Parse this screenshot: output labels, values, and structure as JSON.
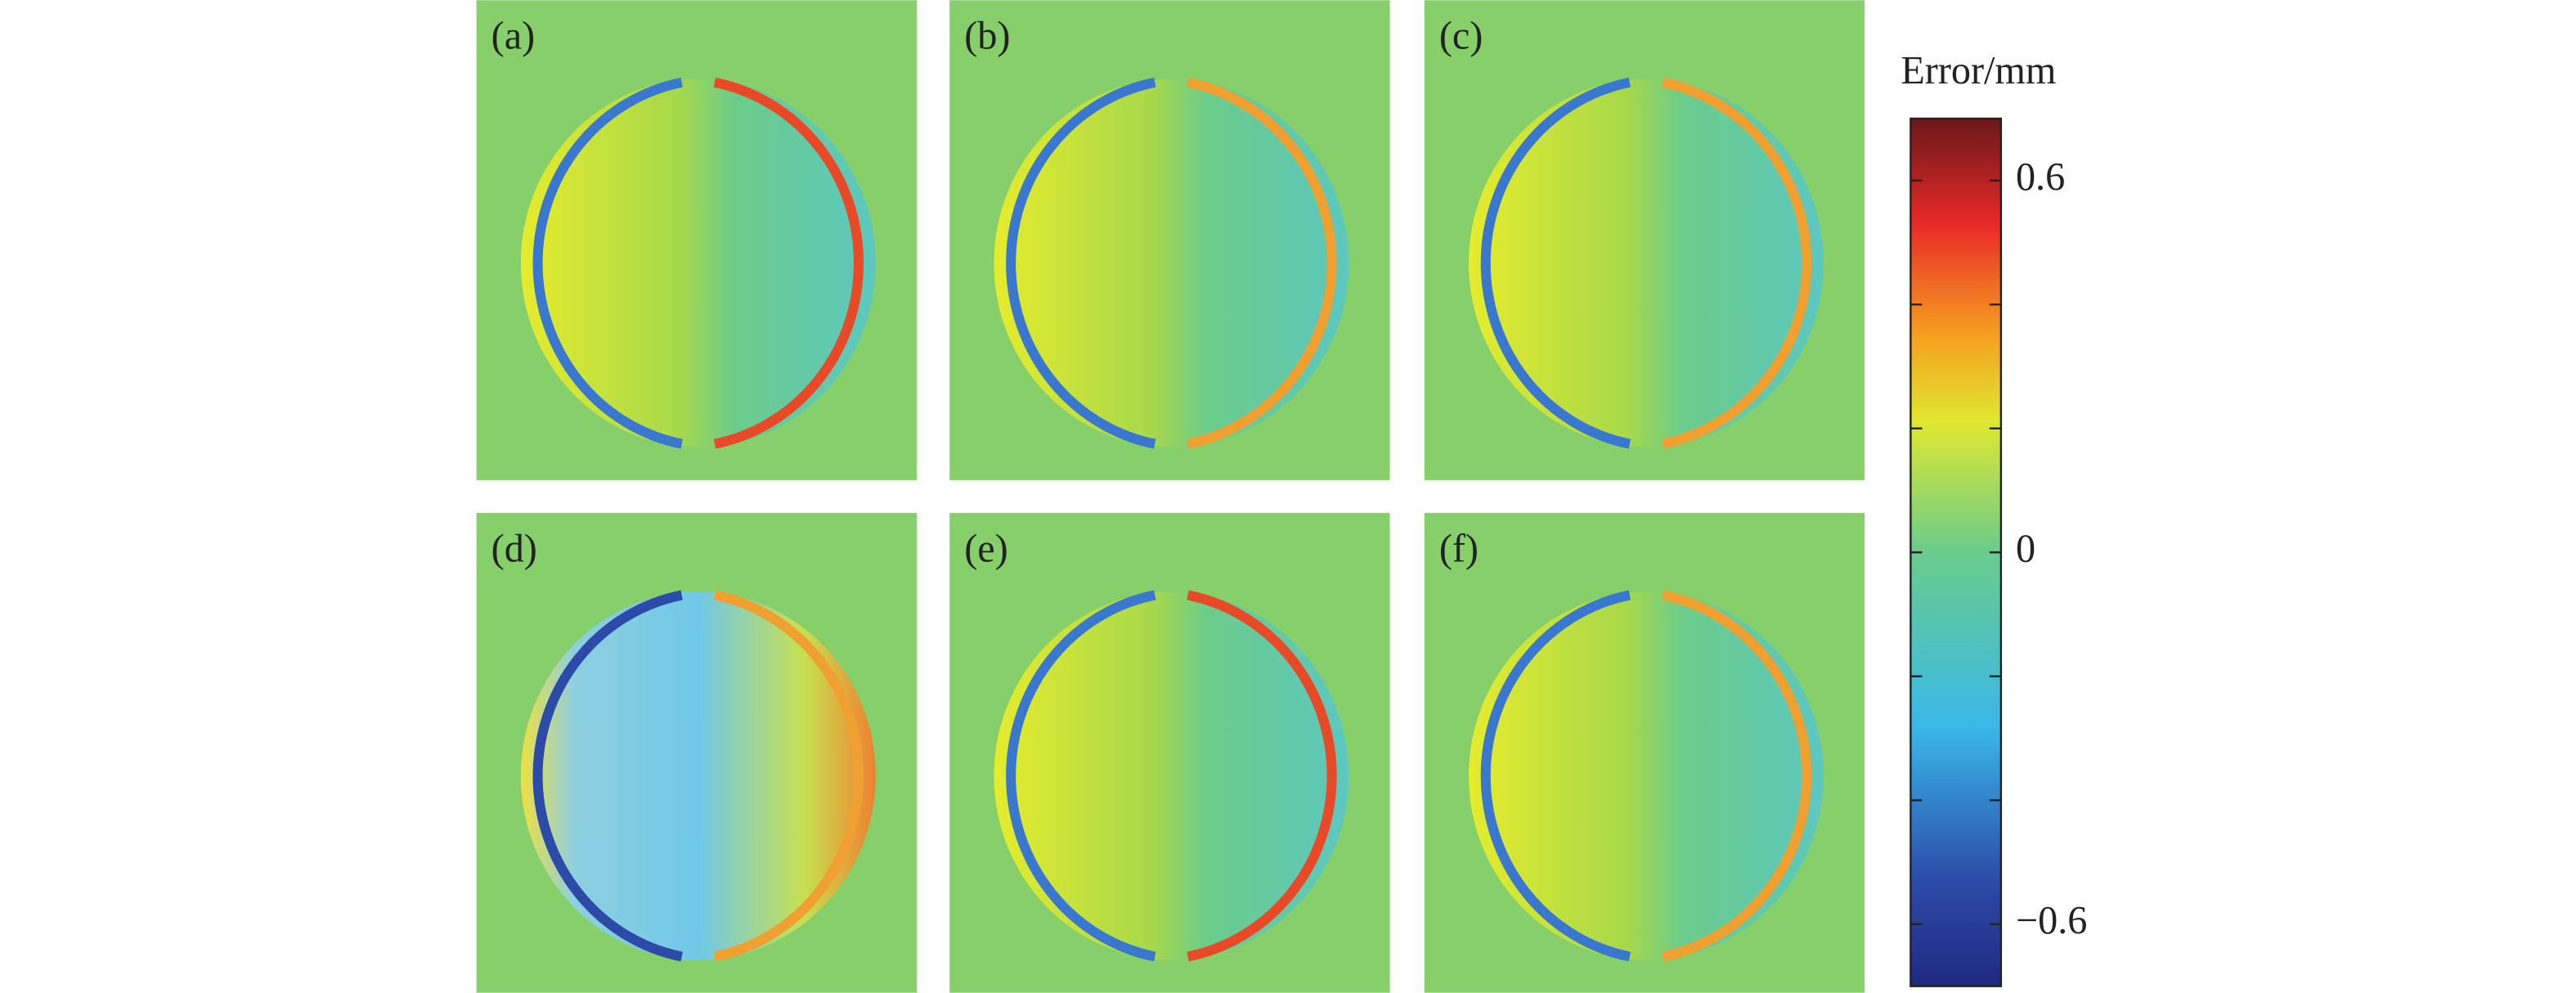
{
  "panels": [
    {
      "label": "(a)"
    },
    {
      "label": "(b)"
    },
    {
      "label": "(c)"
    },
    {
      "label": "(d)"
    },
    {
      "label": "(e)"
    },
    {
      "label": "(f)"
    }
  ],
  "colorbar": {
    "title": "Error/mm",
    "lim": [
      -0.7,
      0.7
    ],
    "ticks": [
      0.6,
      0,
      {
        "value": -0.6,
        "label": "−0.6"
      }
    ],
    "minor_ticks": [
      -0.4,
      -0.2,
      0.2,
      0.4
    ]
  }
}
